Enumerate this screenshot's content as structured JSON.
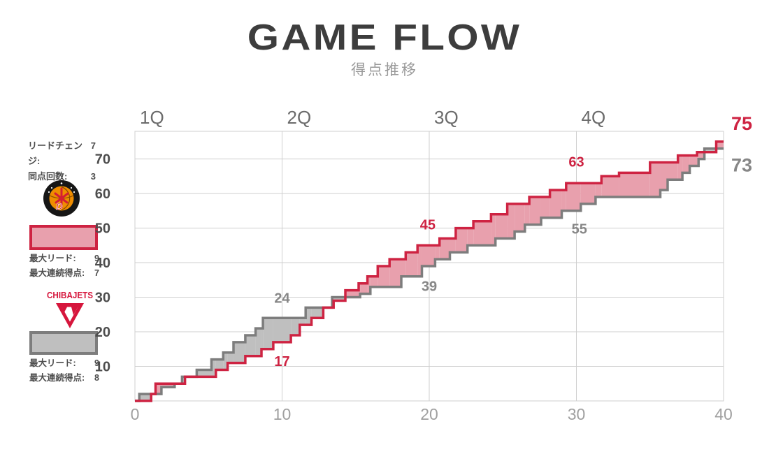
{
  "header": {
    "title": "GAME FLOW",
    "subtitle": "得点推移"
  },
  "sidebar": {
    "stats": [
      {
        "label": "リードチェンジ:",
        "value": "7"
      },
      {
        "label": "同点回数:",
        "value": "3"
      }
    ],
    "teams": [
      {
        "id": "nagoya-diamond-dolphins",
        "rows": [
          {
            "label": "最大リード:",
            "value": "9"
          },
          {
            "label": "最大連続得点:",
            "value": "7"
          }
        ]
      },
      {
        "id": "chiba-jets",
        "logo_text": "CHIBAJETS",
        "rows": [
          {
            "label": "最大リード:",
            "value": "9"
          },
          {
            "label": "最大連続得点:",
            "value": "8"
          }
        ]
      }
    ]
  },
  "chart_data": {
    "type": "line",
    "subtype": "step-area-game-flow",
    "title": "GAME FLOW",
    "subtitle": "得点推移",
    "xlabel": "",
    "ylabel": "",
    "x_range": [
      0,
      40
    ],
    "y_range": [
      0,
      78
    ],
    "x_tick_labels": [
      0,
      10,
      20,
      30,
      40
    ],
    "y_tick_labels": [
      10,
      20,
      30,
      40,
      50,
      60,
      70
    ],
    "grid": true,
    "quarter_labels": [
      {
        "text": "1Q",
        "t": 0
      },
      {
        "text": "2Q",
        "t": 10
      },
      {
        "text": "3Q",
        "t": 20
      },
      {
        "text": "4Q",
        "t": 30
      }
    ],
    "series": [
      {
        "name": "chiba-jets",
        "line_color": "#7d7d7d",
        "fill_color": "#bfbfbf",
        "final_score": "73",
        "points": [
          [
            0.3,
            2
          ],
          [
            1.8,
            4
          ],
          [
            2.7,
            5
          ],
          [
            3.2,
            7
          ],
          [
            4.2,
            9
          ],
          [
            5.2,
            12
          ],
          [
            6.0,
            14
          ],
          [
            6.7,
            17
          ],
          [
            7.5,
            19
          ],
          [
            8.2,
            21
          ],
          [
            8.7,
            24
          ],
          [
            11.6,
            27
          ],
          [
            13.4,
            30
          ],
          [
            15.3,
            31
          ],
          [
            16.0,
            33
          ],
          [
            18.1,
            36
          ],
          [
            19.5,
            39
          ],
          [
            20.4,
            41
          ],
          [
            21.4,
            43
          ],
          [
            22.6,
            45
          ],
          [
            24.5,
            47
          ],
          [
            25.8,
            49
          ],
          [
            26.5,
            51
          ],
          [
            27.6,
            53
          ],
          [
            29.0,
            55
          ],
          [
            30.3,
            57
          ],
          [
            31.3,
            59
          ],
          [
            35.7,
            61
          ],
          [
            36.2,
            64
          ],
          [
            37.2,
            66
          ],
          [
            37.7,
            68
          ],
          [
            38.3,
            70
          ],
          [
            38.7,
            73
          ]
        ]
      },
      {
        "name": "nagoya-diamond-dolphins",
        "line_color": "#ce2342",
        "fill_color": "#e8a0ad",
        "final_score": "75",
        "points": [
          [
            1.1,
            2
          ],
          [
            1.4,
            5
          ],
          [
            3.4,
            7
          ],
          [
            5.5,
            9
          ],
          [
            6.3,
            11
          ],
          [
            7.5,
            13
          ],
          [
            8.6,
            15
          ],
          [
            9.4,
            17
          ],
          [
            10.6,
            19
          ],
          [
            11.2,
            22
          ],
          [
            12.0,
            24
          ],
          [
            12.8,
            27
          ],
          [
            13.5,
            29
          ],
          [
            14.3,
            32
          ],
          [
            15.2,
            34
          ],
          [
            15.8,
            36
          ],
          [
            16.5,
            39
          ],
          [
            17.3,
            41
          ],
          [
            18.4,
            43
          ],
          [
            19.2,
            45
          ],
          [
            20.7,
            47
          ],
          [
            21.8,
            50
          ],
          [
            23.0,
            52
          ],
          [
            24.2,
            54
          ],
          [
            25.3,
            57
          ],
          [
            26.8,
            59
          ],
          [
            28.2,
            61
          ],
          [
            29.3,
            63
          ],
          [
            31.7,
            65
          ],
          [
            32.9,
            66
          ],
          [
            35.0,
            69
          ],
          [
            36.9,
            71
          ],
          [
            38.2,
            72
          ],
          [
            39.5,
            75
          ]
        ]
      }
    ],
    "quarter_score_annotations": [
      {
        "text": "17",
        "series": "nagoya-diamond-dolphins",
        "t": 10.0,
        "v": 11.5
      },
      {
        "text": "24",
        "series": "chiba-jets",
        "t": 10.0,
        "v": 29.8
      },
      {
        "text": "45",
        "series": "nagoya-diamond-dolphins",
        "t": 19.9,
        "v": 51.0
      },
      {
        "text": "39",
        "series": "chiba-jets",
        "t": 20.0,
        "v": 33.2
      },
      {
        "text": "63",
        "series": "nagoya-diamond-dolphins",
        "t": 30.0,
        "v": 69.2
      },
      {
        "text": "55",
        "series": "chiba-jets",
        "t": 30.2,
        "v": 49.8
      }
    ],
    "annotation_colors": {
      "nagoya-diamond-dolphins": "#ce2342",
      "chiba-jets": "#878787"
    }
  }
}
